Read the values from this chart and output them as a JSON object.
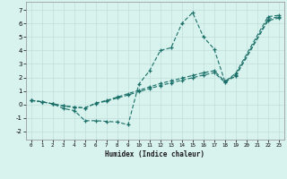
{
  "xlabel": "Humidex (Indice chaleur)",
  "bg_color": "#d8f2ee",
  "grid_color": "#c0deda",
  "line_color": "#1a7068",
  "xlim": [
    -0.5,
    23.5
  ],
  "ylim": [
    -2.6,
    7.6
  ],
  "xticks": [
    0,
    1,
    2,
    3,
    4,
    5,
    6,
    7,
    8,
    9,
    10,
    11,
    12,
    13,
    14,
    15,
    16,
    17,
    18,
    19,
    20,
    21,
    22,
    23
  ],
  "yticks": [
    -2,
    -1,
    0,
    1,
    2,
    3,
    4,
    5,
    6,
    7
  ],
  "series": [
    {
      "x": [
        0,
        1,
        2,
        3,
        4,
        5,
        6,
        7,
        8,
        9,
        10,
        11,
        12,
        13,
        14,
        15,
        16,
        17,
        18,
        19,
        22,
        23
      ],
      "y": [
        0.3,
        0.2,
        0.05,
        -0.3,
        -0.45,
        -1.2,
        -1.2,
        -1.25,
        -1.3,
        -1.5,
        1.5,
        2.5,
        4.0,
        4.2,
        6.0,
        6.8,
        5.0,
        4.1,
        1.7,
        2.3,
        6.5,
        6.6
      ]
    },
    {
      "x": [
        0,
        1,
        2,
        3,
        4,
        5,
        6,
        7,
        8,
        9,
        10,
        11,
        12,
        13,
        14,
        15,
        16,
        17,
        18,
        19,
        22,
        23
      ],
      "y": [
        0.3,
        0.2,
        0.05,
        -0.1,
        -0.2,
        -0.25,
        0.1,
        0.3,
        0.55,
        0.8,
        1.05,
        1.3,
        1.55,
        1.75,
        1.95,
        2.15,
        2.35,
        2.5,
        1.7,
        2.2,
        6.3,
        6.5
      ]
    },
    {
      "x": [
        0,
        1,
        2,
        3,
        4,
        5,
        6,
        7,
        8,
        9,
        10,
        11,
        12,
        13,
        14,
        15,
        16,
        17,
        18,
        19,
        22,
        23
      ],
      "y": [
        0.3,
        0.2,
        0.05,
        -0.1,
        -0.2,
        -0.25,
        0.08,
        0.25,
        0.48,
        0.7,
        0.95,
        1.18,
        1.4,
        1.6,
        1.8,
        1.98,
        2.18,
        2.35,
        1.65,
        2.1,
        6.2,
        6.4
      ]
    }
  ]
}
